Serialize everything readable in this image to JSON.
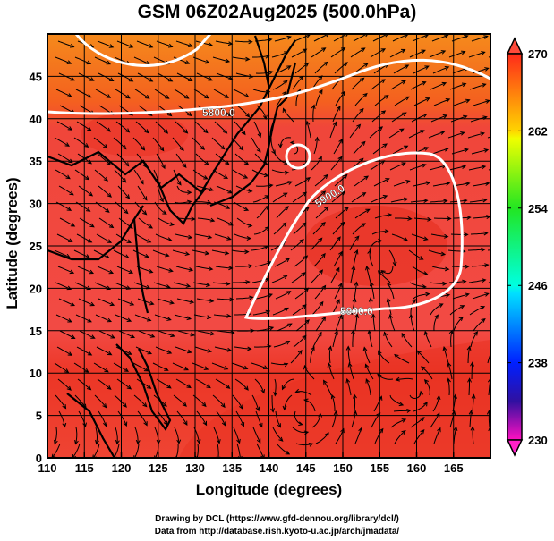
{
  "title": "GSM 06Z02Aug2025 (500.0hPa)",
  "chart_data": {
    "type": "heatmap",
    "title": "GSM 06Z02Aug2025 (500.0hPa)",
    "xlabel": "Longitude (degrees)",
    "ylabel": "Latitude  (degrees)",
    "xlim": [
      110,
      170
    ],
    "ylim": [
      0,
      50
    ],
    "xticks": [
      "110",
      "115",
      "120",
      "125",
      "130",
      "135",
      "140",
      "145",
      "150",
      "155",
      "160",
      "165"
    ],
    "yticks": [
      "0",
      "5",
      "10",
      "15",
      "20",
      "25",
      "30",
      "35",
      "40",
      "45"
    ],
    "grid": true,
    "colorbar": {
      "range": [
        230,
        270
      ],
      "ticks": [
        "270",
        "262",
        "254",
        "246",
        "238",
        "230"
      ]
    },
    "contour_labels": [
      "5800.0",
      "5900.0",
      "5900.0"
    ],
    "colors": {
      "warm": "#f2473f",
      "hot": "#e8301f",
      "orange": "#f57a1a"
    }
  },
  "credits": {
    "line1": "Drawing by DCL (https://www.gfd-dennou.org/library/dcl/)",
    "line2": "Data from http://database.rish.kyoto-u.ac.jp/arch/jmadata/"
  }
}
